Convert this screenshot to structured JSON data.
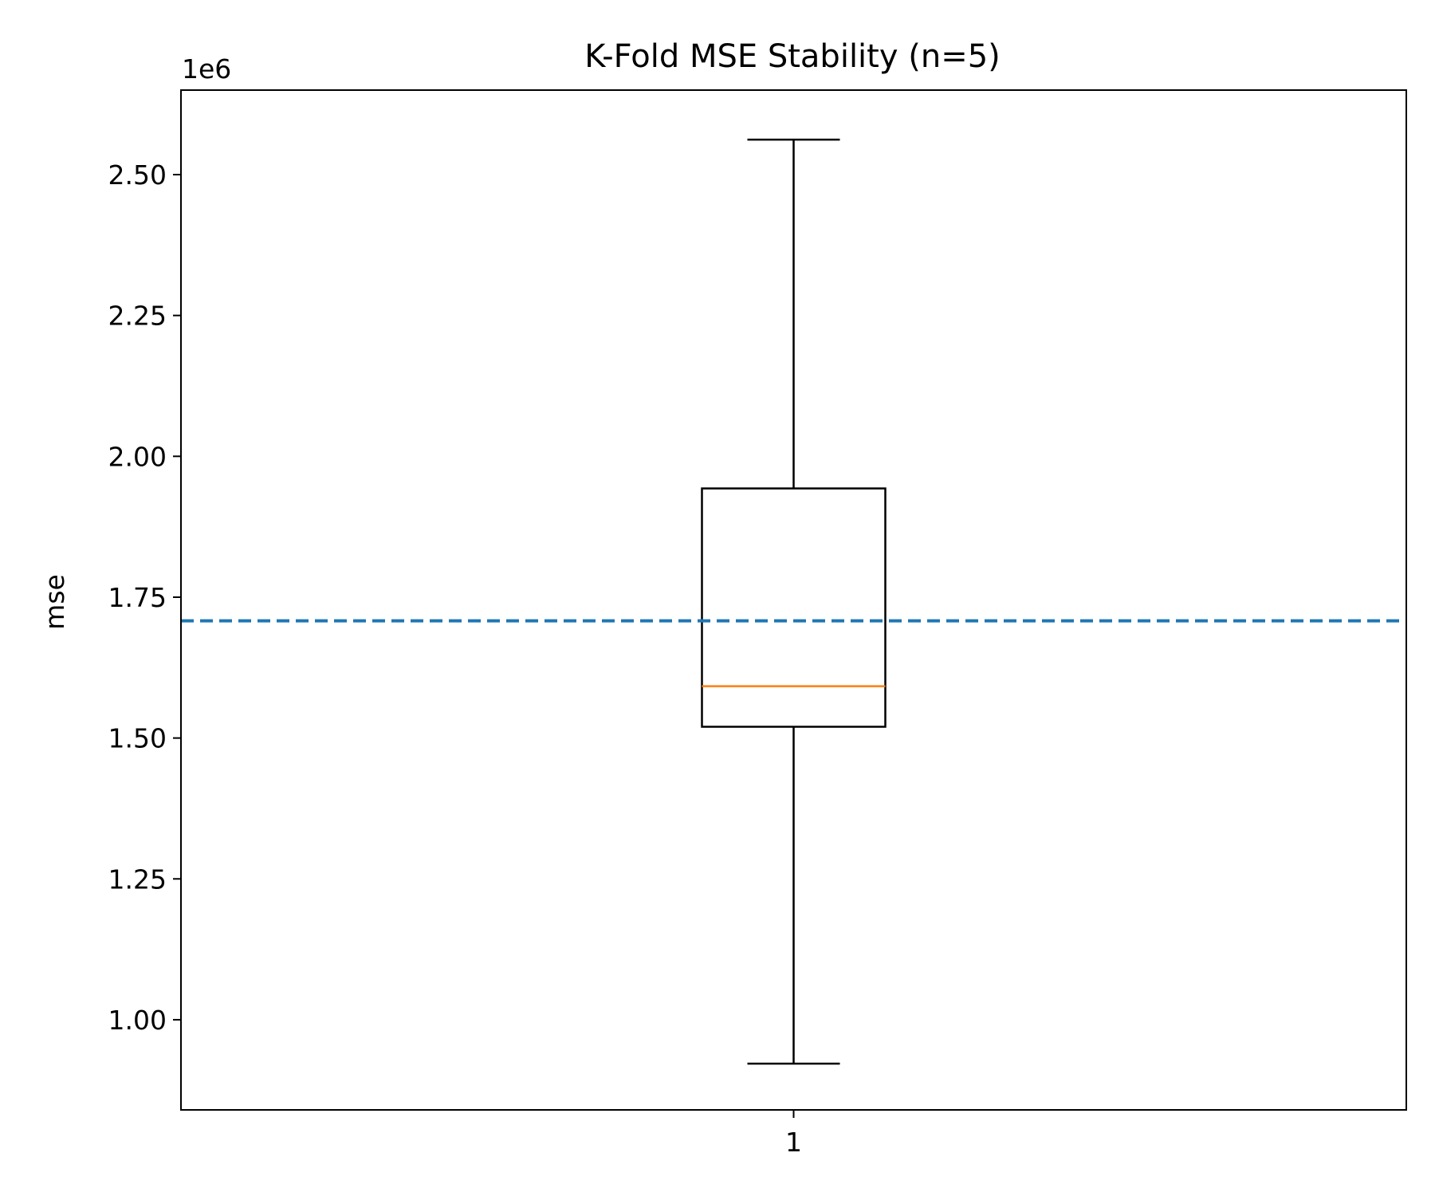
{
  "chart_data": {
    "type": "box",
    "title": "K-Fold MSE Stability (n=5)",
    "xlabel": "",
    "ylabel": "mse",
    "y_offset_label": "1e6",
    "ylim": [
      0.84,
      2.65
    ],
    "yticks": [
      1.0,
      1.25,
      1.5,
      1.75,
      2.0,
      2.25,
      2.5
    ],
    "ytick_labels": [
      "1.00",
      "1.25",
      "1.50",
      "1.75",
      "2.00",
      "2.25",
      "2.50"
    ],
    "categories": [
      "1"
    ],
    "boxes": [
      {
        "label": "1",
        "whisker_low": 0.922,
        "q1": 1.52,
        "median": 1.592,
        "q3": 1.943,
        "whisker_high": 2.562
      }
    ],
    "reference_line": {
      "y": 1.708,
      "style": "dashed",
      "color": "#1f77b4"
    },
    "colors": {
      "box": "#000000",
      "median": "#ff7f0e",
      "reference": "#1f77b4"
    },
    "grid": false,
    "legend": "none"
  }
}
